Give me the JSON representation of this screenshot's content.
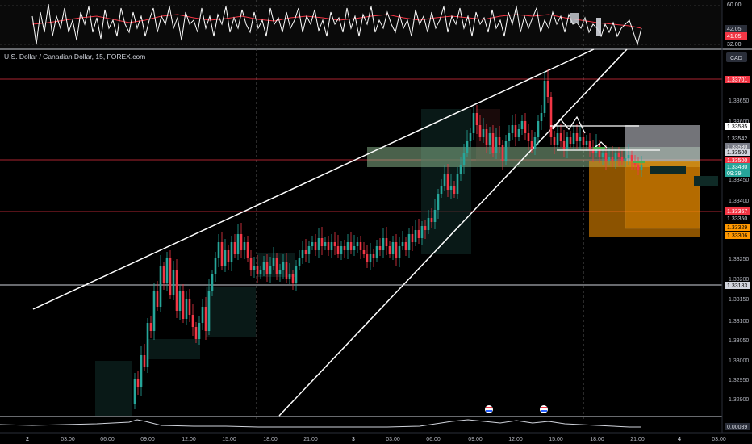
{
  "symbol": {
    "title": "U.S. Dollar / Canadian Dollar, 15, FOREX.com",
    "currency_label": "CAD"
  },
  "oscillator": {
    "axis_labels": [
      "60.00",
      "32.00"
    ],
    "value_badges": [
      {
        "text": "42.05",
        "bg": "#2a2e39",
        "fg": "#d1d4dc"
      },
      {
        "text": "41.05",
        "bg": "#f23645",
        "fg": "#ffffff"
      }
    ]
  },
  "price_axis": {
    "ticks": [
      "1.33650",
      "1.33600",
      "1.33450",
      "1.33400",
      "1.33250",
      "1.33200",
      "1.33150",
      "1.33100",
      "1.33050",
      "1.33000",
      "1.32950",
      "1.32900"
    ],
    "badges": [
      {
        "text": "1.33701",
        "bg": "#f23645",
        "fg": "#ffffff"
      },
      {
        "text": "1.33585",
        "bg": "#ffffff",
        "fg": "#000000"
      },
      {
        "text": "1.33542",
        "bg": "#000000",
        "fg": "#d1d4dc"
      },
      {
        "text": "1.33530",
        "bg": "#787b86",
        "fg": "#ffffff"
      },
      {
        "text": "1.33500",
        "bg": "#d1d4dc",
        "fg": "#000000"
      },
      {
        "text": "1.33500",
        "bg": "#f23645",
        "fg": "#ffffff"
      },
      {
        "text": "1.33480",
        "bg": "#26a69a",
        "fg": "#ffffff"
      },
      {
        "text": "09:39",
        "bg": "#26a69a",
        "fg": "#ffffff"
      },
      {
        "text": "1.33367",
        "bg": "#f23645",
        "fg": "#ffffff"
      },
      {
        "text": "1.33350",
        "bg": "#000000",
        "fg": "#d1d4dc"
      },
      {
        "text": "1.33329",
        "bg": "#ff9800",
        "fg": "#000000"
      },
      {
        "text": "1.33306",
        "bg": "#ff9800",
        "fg": "#000000"
      },
      {
        "text": "1.33183",
        "bg": "#d1d4dc",
        "fg": "#000000"
      }
    ]
  },
  "volume": {
    "value_badge": "0.00039"
  },
  "time_axis": {
    "labels": [
      "2",
      "03:00",
      "06:00",
      "09:00",
      "12:00",
      "15:00",
      "18:00",
      "21:00",
      "3",
      "03:00",
      "06:00",
      "09:00",
      "12:00",
      "15:00",
      "18:00",
      "21:00",
      "4",
      "03:00"
    ]
  },
  "colors": {
    "bull": "#26a69a",
    "bear": "#f23645",
    "support_zone": "#a5d6a7",
    "target_zone": "#ff9800",
    "rsi_line": "#ffffff",
    "rsi_ma": "#f23645"
  },
  "icons": [
    "us-flag-event-icon",
    "us-flag-event-icon"
  ]
}
